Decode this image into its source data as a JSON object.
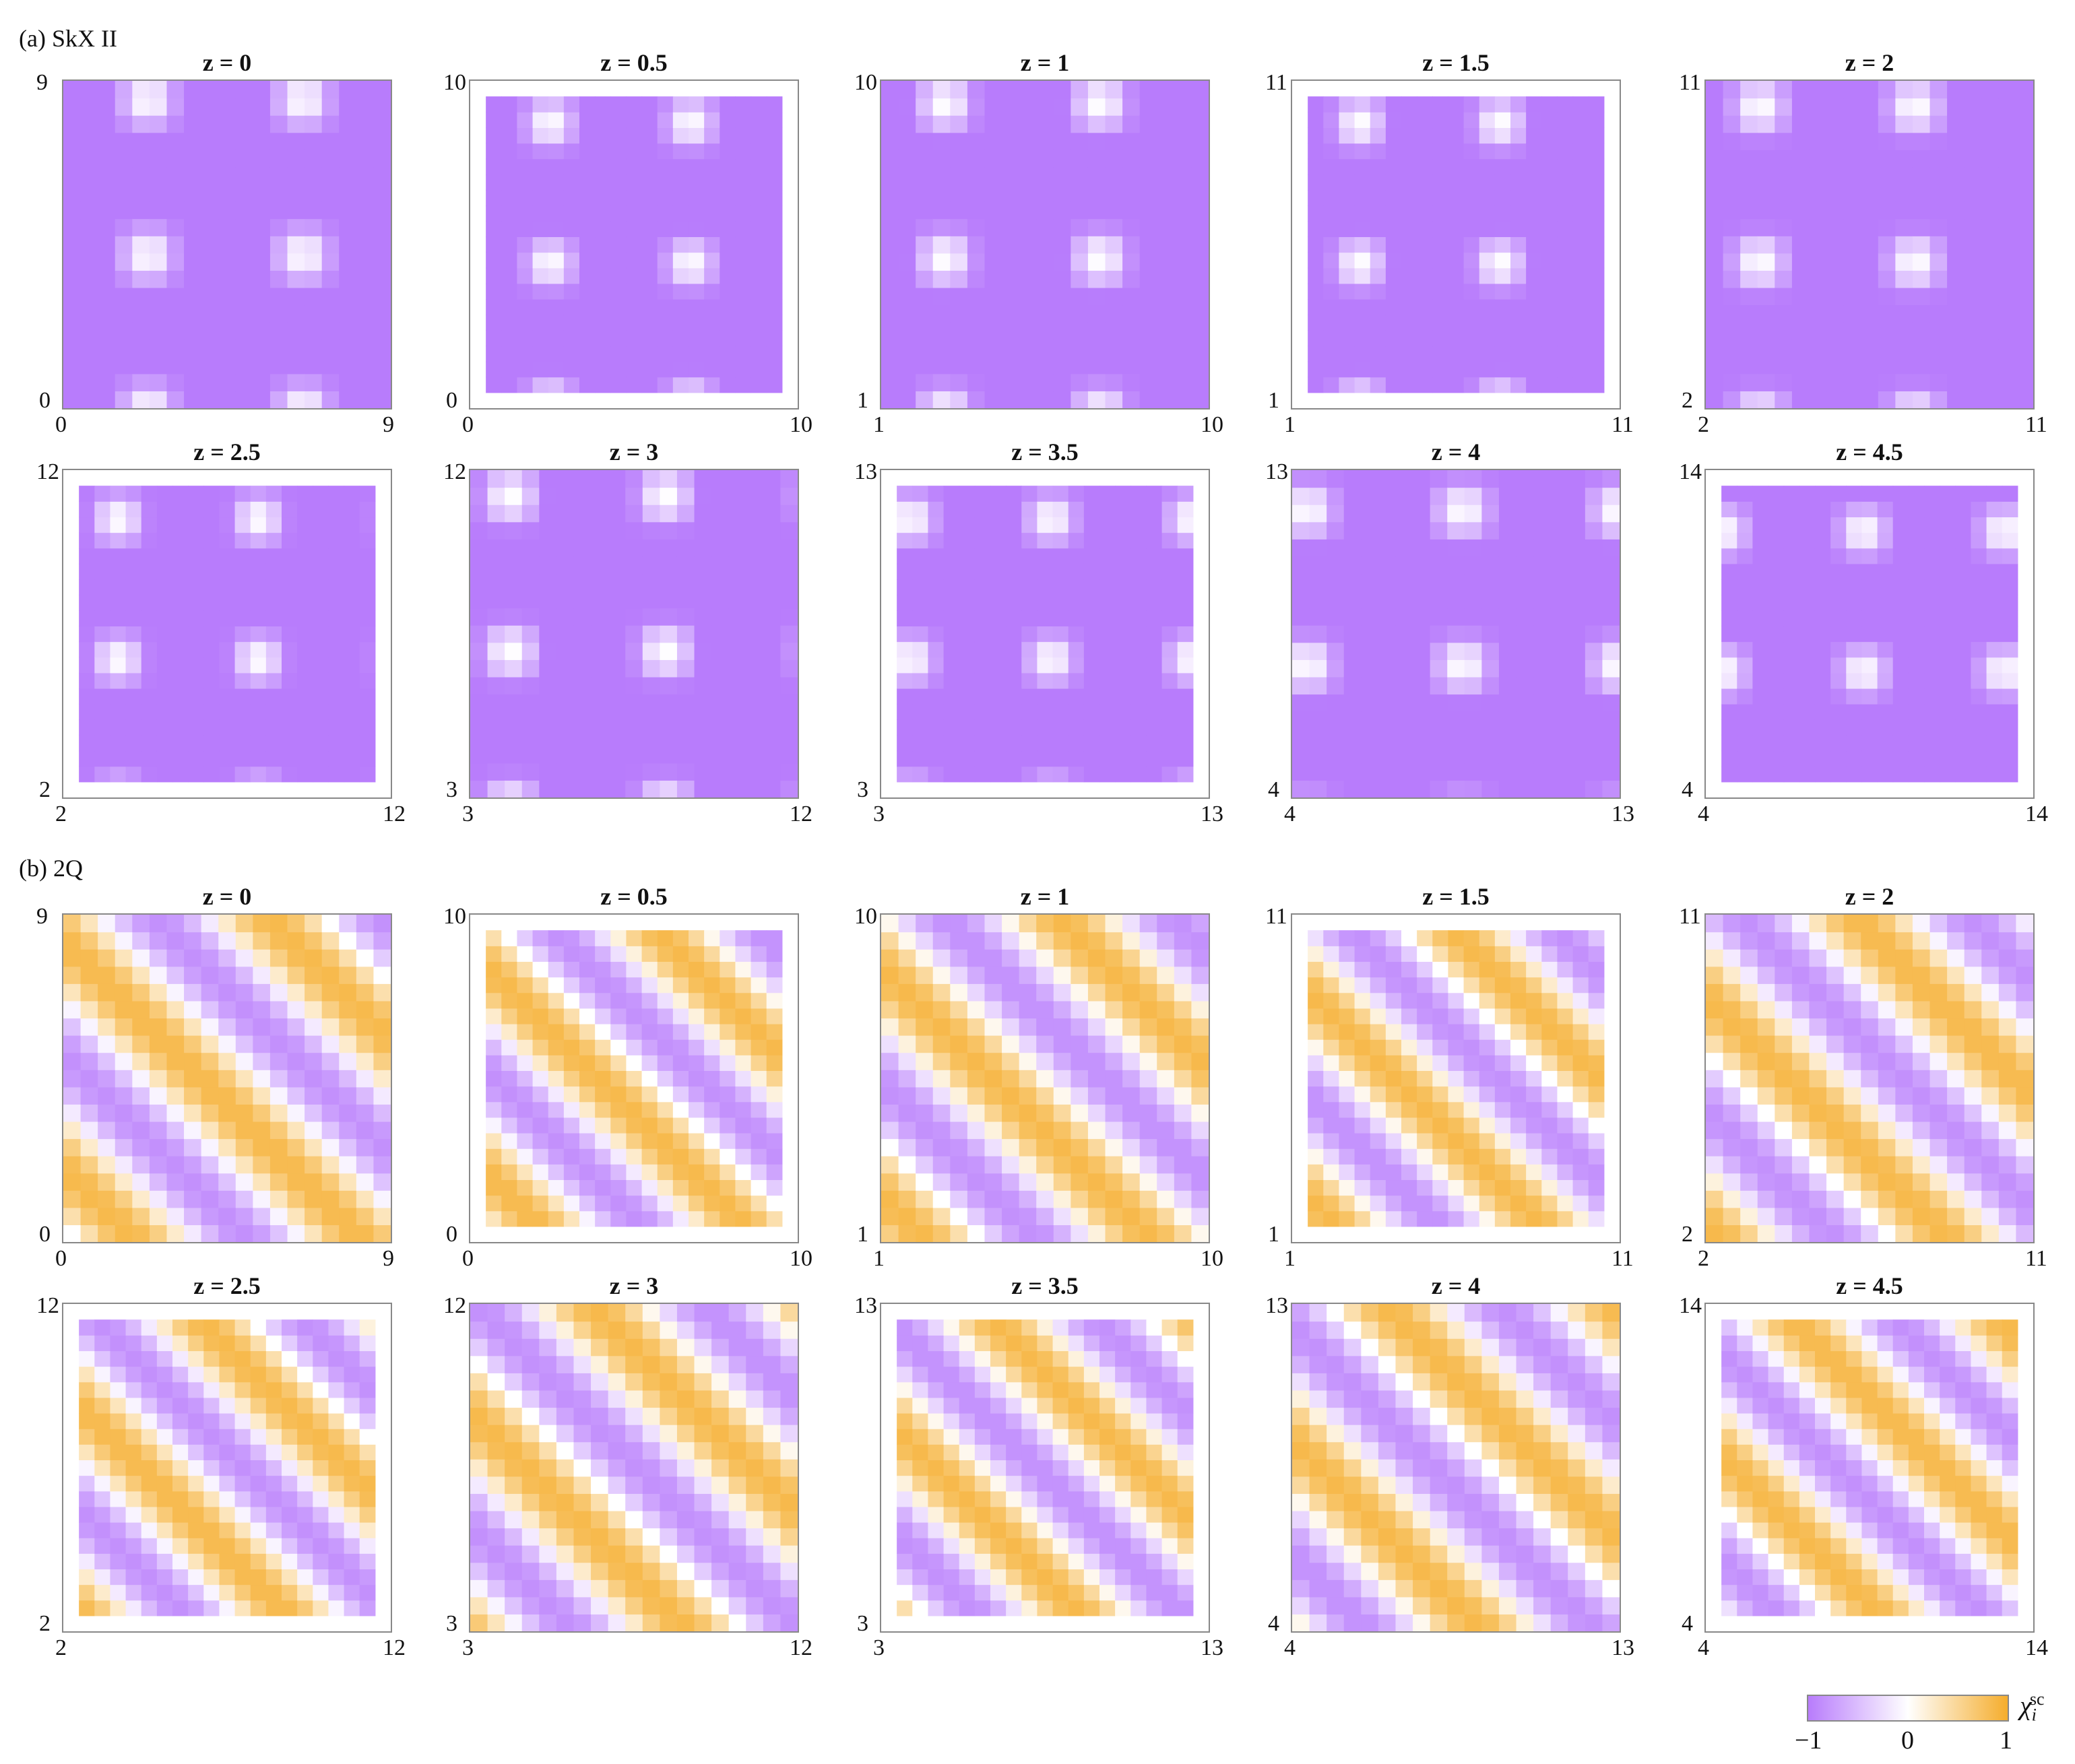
{
  "section_labels": {
    "a": "(a) SkX II",
    "b": "(b) 2Q"
  },
  "colorbar": {
    "label": "χ",
    "label_sub": "i",
    "label_sup": "sc",
    "min": "−1",
    "mid": "0",
    "max": "1",
    "colors": {
      "neg": "#b87cfc",
      "zero": "#ffffff",
      "pos": "#f5ad2c"
    }
  },
  "chart_data": [
    {
      "type": "heatmap",
      "group": "SkX II",
      "title": "z = 0",
      "x_ticks": [
        "0",
        "9"
      ],
      "y_ticks": [
        "0",
        "9"
      ],
      "xlim": [
        0,
        9
      ],
      "ylim": [
        0,
        9
      ],
      "pattern": "skx",
      "phase": [
        2.2,
        -0.3
      ]
    },
    {
      "type": "heatmap",
      "group": "SkX II",
      "title": "z = 0.5",
      "x_ticks": [
        "0",
        "10"
      ],
      "y_ticks": [
        "0",
        "10"
      ],
      "xlim": [
        0,
        10
      ],
      "ylim": [
        0,
        10
      ],
      "pattern": "skx",
      "phase": [
        2.3,
        -0.1
      ]
    },
    {
      "type": "heatmap",
      "group": "SkX II",
      "title": "z = 1",
      "x_ticks": [
        "1",
        "10"
      ],
      "y_ticks": [
        "1",
        "10"
      ],
      "xlim": [
        1,
        10
      ],
      "ylim": [
        1,
        10
      ],
      "pattern": "skx",
      "phase": [
        2.6,
        0.6
      ]
    },
    {
      "type": "heatmap",
      "group": "SkX II",
      "title": "z = 1.5",
      "x_ticks": [
        "1",
        "11"
      ],
      "y_ticks": [
        "1",
        "11"
      ],
      "xlim": [
        1,
        11
      ],
      "ylim": [
        1,
        11
      ],
      "pattern": "skx",
      "phase": [
        2.9,
        0.9
      ]
    },
    {
      "type": "heatmap",
      "group": "SkX II",
      "title": "z = 2",
      "x_ticks": [
        "2",
        "11"
      ],
      "y_ticks": [
        "2",
        "11"
      ],
      "xlim": [
        2,
        11
      ],
      "ylim": [
        2,
        11
      ],
      "pattern": "skx",
      "phase": [
        3.3,
        1.5
      ]
    },
    {
      "type": "heatmap",
      "group": "SkX II",
      "title": "z = 2.5",
      "x_ticks": [
        "2",
        "12"
      ],
      "y_ticks": [
        "2",
        "12"
      ],
      "xlim": [
        2,
        12
      ],
      "ylim": [
        2,
        12
      ],
      "pattern": "skx",
      "phase": [
        3.5,
        1.7
      ]
    },
    {
      "type": "heatmap",
      "group": "SkX II",
      "title": "z = 3",
      "x_ticks": [
        "3",
        "12"
      ],
      "y_ticks": [
        "3",
        "12"
      ],
      "xlim": [
        3,
        12
      ],
      "ylim": [
        3,
        12
      ],
      "pattern": "skx",
      "phase": [
        3.9,
        2.5
      ]
    },
    {
      "type": "heatmap",
      "group": "SkX II",
      "title": "z = 3.5",
      "x_ticks": [
        "3",
        "13"
      ],
      "y_ticks": [
        "3",
        "13"
      ],
      "xlim": [
        3,
        13
      ],
      "ylim": [
        3,
        13
      ],
      "pattern": "skx",
      "phase": [
        3.7,
        2.7
      ]
    },
    {
      "type": "heatmap",
      "group": "SkX II",
      "title": "z = 4",
      "x_ticks": [
        "4",
        "13"
      ],
      "y_ticks": [
        "4",
        "13"
      ],
      "xlim": [
        4,
        13
      ],
      "ylim": [
        4,
        13
      ],
      "pattern": "skx",
      "phase": [
        4.2,
        3.1
      ]
    },
    {
      "type": "heatmap",
      "group": "SkX II",
      "title": "z = 4.5",
      "x_ticks": [
        "4",
        "14"
      ],
      "y_ticks": [
        "4",
        "14"
      ],
      "xlim": [
        4,
        14
      ],
      "ylim": [
        4,
        14
      ],
      "pattern": "skx",
      "phase": [
        4.3,
        3.3
      ]
    },
    {
      "type": "heatmap",
      "group": "2Q",
      "title": "z = 0",
      "x_ticks": [
        "0",
        "9"
      ],
      "y_ticks": [
        "0",
        "9"
      ],
      "xlim": [
        0,
        9
      ],
      "ylim": [
        0,
        9
      ],
      "pattern": "stripe",
      "phase": [
        0.0,
        0
      ]
    },
    {
      "type": "heatmap",
      "group": "2Q",
      "title": "z = 0.5",
      "x_ticks": [
        "0",
        "10"
      ],
      "y_ticks": [
        "0",
        "10"
      ],
      "xlim": [
        0,
        10
      ],
      "ylim": [
        0,
        10
      ],
      "pattern": "stripe",
      "phase": [
        0.6,
        0
      ]
    },
    {
      "type": "heatmap",
      "group": "2Q",
      "title": "z = 1",
      "x_ticks": [
        "1",
        "10"
      ],
      "y_ticks": [
        "1",
        "10"
      ],
      "xlim": [
        1,
        10
      ],
      "ylim": [
        1,
        10
      ],
      "pattern": "stripe",
      "phase": [
        1.2,
        0
      ]
    },
    {
      "type": "heatmap",
      "group": "2Q",
      "title": "z = 1.5",
      "x_ticks": [
        "1",
        "11"
      ],
      "y_ticks": [
        "1",
        "11"
      ],
      "xlim": [
        1,
        11
      ],
      "ylim": [
        1,
        11
      ],
      "pattern": "stripe",
      "phase": [
        1.8,
        0
      ]
    },
    {
      "type": "heatmap",
      "group": "2Q",
      "title": "z = 2",
      "x_ticks": [
        "2",
        "11"
      ],
      "y_ticks": [
        "2",
        "11"
      ],
      "xlim": [
        2,
        11
      ],
      "ylim": [
        2,
        11
      ],
      "pattern": "stripe",
      "phase": [
        2.4,
        0
      ]
    },
    {
      "type": "heatmap",
      "group": "2Q",
      "title": "z = 2.5",
      "x_ticks": [
        "2",
        "12"
      ],
      "y_ticks": [
        "2",
        "12"
      ],
      "xlim": [
        2,
        12
      ],
      "ylim": [
        2,
        12
      ],
      "pattern": "stripe",
      "phase": [
        3.0,
        0
      ]
    },
    {
      "type": "heatmap",
      "group": "2Q",
      "title": "z = 3",
      "x_ticks": [
        "3",
        "12"
      ],
      "y_ticks": [
        "3",
        "12"
      ],
      "xlim": [
        3,
        12
      ],
      "ylim": [
        3,
        12
      ],
      "pattern": "stripe",
      "phase": [
        3.6,
        0
      ]
    },
    {
      "type": "heatmap",
      "group": "2Q",
      "title": "z = 3.5",
      "x_ticks": [
        "3",
        "13"
      ],
      "y_ticks": [
        "3",
        "13"
      ],
      "xlim": [
        3,
        13
      ],
      "ylim": [
        3,
        13
      ],
      "pattern": "stripe",
      "phase": [
        4.2,
        0
      ]
    },
    {
      "type": "heatmap",
      "group": "2Q",
      "title": "z = 4",
      "x_ticks": [
        "4",
        "13"
      ],
      "y_ticks": [
        "4",
        "13"
      ],
      "xlim": [
        4,
        13
      ],
      "ylim": [
        4,
        13
      ],
      "pattern": "stripe",
      "phase": [
        4.8,
        0
      ]
    },
    {
      "type": "heatmap",
      "group": "2Q",
      "title": "z = 4.5",
      "x_ticks": [
        "4",
        "14"
      ],
      "y_ticks": [
        "4",
        "14"
      ],
      "xlim": [
        4,
        14
      ],
      "ylim": [
        4,
        14
      ],
      "pattern": "stripe",
      "phase": [
        5.4,
        0
      ]
    }
  ]
}
